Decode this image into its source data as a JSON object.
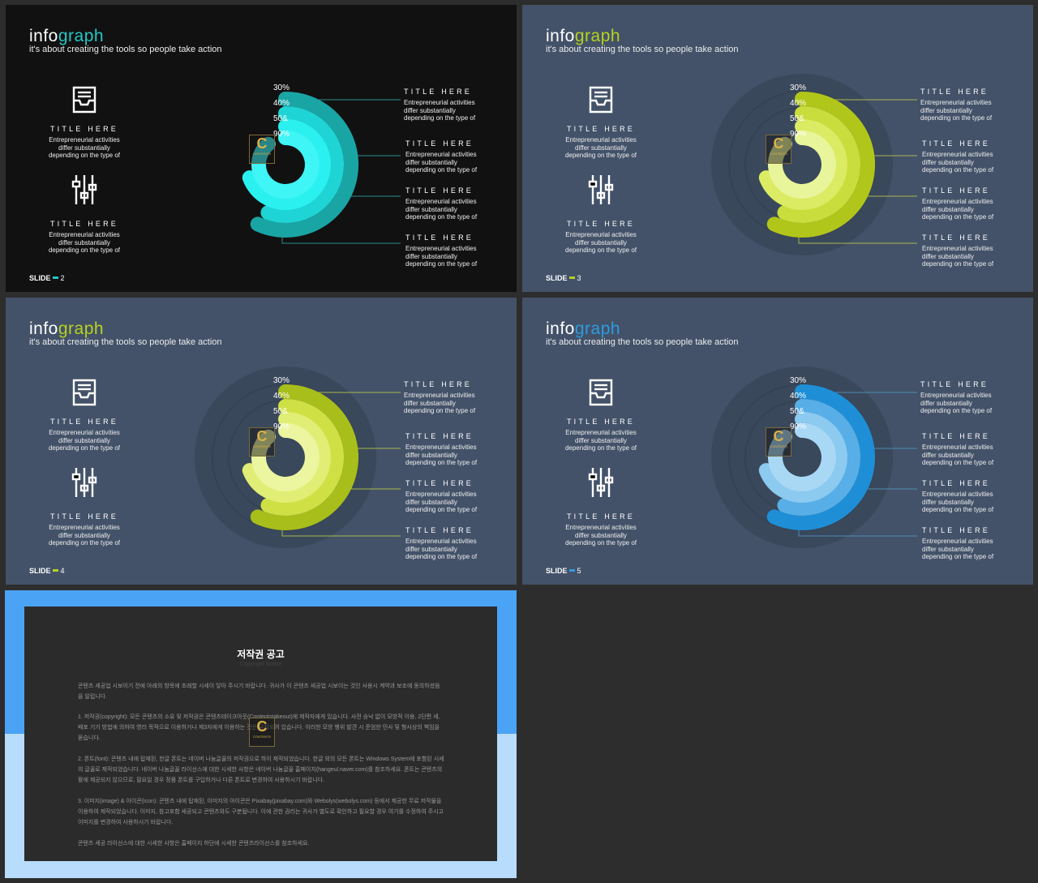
{
  "slides": [
    {
      "bg": "#111111",
      "title_a": "info",
      "title_b": "graph",
      "accent": "#26c6c6",
      "subtitle": "it's about creating the tools so people take action",
      "left": [
        {
          "icon": "inbox-tray-icon",
          "title": "TITLE HERE",
          "text": [
            "Entrepreneurial activities",
            "differ substantially",
            "depending on the type of"
          ]
        },
        {
          "icon": "sliders-icon",
          "title": "TITLE HERE",
          "text": [
            "Entrepreneurial activities",
            "differ substantially",
            "depending on the type of"
          ]
        }
      ],
      "right": [
        {
          "title": "TITLE HERE",
          "text": [
            "Entrepreneurial activities",
            "differ substantially",
            "depending on the type of"
          ]
        },
        {
          "title": "TITLE HERE",
          "text": [
            "Entrepreneurial activities",
            "differ substantially",
            "depending on the type of"
          ]
        },
        {
          "title": "TITLE HERE",
          "text": [
            "Entrepreneurial activities",
            "differ substantially",
            "depending on the type of"
          ]
        },
        {
          "title": "TITLE HERE",
          "text": [
            "Entrepreneurial activities",
            "differ substantially",
            "depending on the type of"
          ]
        }
      ],
      "ring_colors": [
        "#1aa5a5",
        "#1fd4d4",
        "#2bf0f0",
        "#3ff5f5"
      ],
      "line_color": "#2a8a8a",
      "halo": false,
      "slide_label": "SLIDE",
      "slide_num": "2"
    },
    {
      "bg": "#435269",
      "title_a": "info",
      "title_b": "graph",
      "accent": "#b6d21f",
      "subtitle": "it's about creating the tools so people take action",
      "left": [
        {
          "icon": "inbox-tray-icon",
          "title": "TITLE HERE",
          "text": [
            "Entrepreneurial activities",
            "differ substantially",
            "depending on the type of"
          ]
        },
        {
          "icon": "sliders-icon",
          "title": "TITLE HERE",
          "text": [
            "Entrepreneurial activities",
            "differ substantially",
            "depending on the type of"
          ]
        }
      ],
      "right": [
        {
          "title": "TITLE HERE",
          "text": [
            "Entrepreneurial activities",
            "differ substantially",
            "depending on the type of"
          ]
        },
        {
          "title": "TITLE HERE",
          "text": [
            "Entrepreneurial activities",
            "differ substantially",
            "depending on the type of"
          ]
        },
        {
          "title": "TITLE HERE",
          "text": [
            "Entrepreneurial activities",
            "differ substantially",
            "depending on the type of"
          ]
        },
        {
          "title": "TITLE HERE",
          "text": [
            "Entrepreneurial activities",
            "differ substantially",
            "depending on the type of"
          ]
        }
      ],
      "ring_colors": [
        "#b1c61a",
        "#c9dd3c",
        "#dbeb63",
        "#e9f59a"
      ],
      "line_color": "#a7b84a",
      "halo": true,
      "slide_label": "SLIDE",
      "slide_num": "3"
    },
    {
      "bg": "#435269",
      "title_a": "info",
      "title_b": "graph",
      "accent": "#b6d21f",
      "subtitle": "it's about creating the tools so people take action",
      "left": [
        {
          "icon": "inbox-tray-icon",
          "title": "TITLE HERE",
          "text": [
            "Entrepreneurial activities",
            "differ substantially",
            "depending on the type of"
          ]
        },
        {
          "icon": "sliders-icon",
          "title": "TITLE HERE",
          "text": [
            "Entrepreneurial activities",
            "differ substantially",
            "depending on the type of"
          ]
        }
      ],
      "right": [
        {
          "title": "TITLE HERE",
          "text": [
            "Entrepreneurial activities",
            "differ substantially",
            "depending on the type of"
          ]
        },
        {
          "title": "TITLE HERE",
          "text": [
            "Entrepreneurial activities",
            "differ substantially",
            "depending on the type of"
          ]
        },
        {
          "title": "TITLE HERE",
          "text": [
            "Entrepreneurial activities",
            "differ substantially",
            "depending on the type of"
          ]
        },
        {
          "title": "TITLE HERE",
          "text": [
            "Entrepreneurial activities",
            "differ substantially",
            "depending on the type of"
          ]
        }
      ],
      "ring_colors": [
        "#a8be1a",
        "#cfe045",
        "#e0ee75",
        "#ecf59f"
      ],
      "line_color": "#a7b84a",
      "halo": true,
      "slide_label": "SLIDE",
      "slide_num": "4"
    },
    {
      "bg": "#435269",
      "title_a": "info",
      "title_b": "graph",
      "accent": "#2e9be0",
      "subtitle": "it's about creating the tools so people take action",
      "left": [
        {
          "icon": "inbox-tray-icon",
          "title": "TITLE HERE",
          "text": [
            "Entrepreneurial activities",
            "differ substantially",
            "depending on the type of"
          ]
        },
        {
          "icon": "sliders-icon",
          "title": "TITLE HERE",
          "text": [
            "Entrepreneurial activities",
            "differ substantially",
            "depending on the type of"
          ]
        }
      ],
      "right": [
        {
          "title": "TITLE HERE",
          "text": [
            "Entrepreneurial activities",
            "differ substantially",
            "depending on the type of"
          ]
        },
        {
          "title": "TITLE HERE",
          "text": [
            "Entrepreneurial activities",
            "differ substantially",
            "depending on the type of"
          ]
        },
        {
          "title": "TITLE HERE",
          "text": [
            "Entrepreneurial activities",
            "differ substantially",
            "depending on the type of"
          ]
        },
        {
          "title": "TITLE HERE",
          "text": [
            "Entrepreneurial activities",
            "differ substantially",
            "depending on the type of"
          ]
        }
      ],
      "ring_colors": [
        "#1e8fd6",
        "#58aee6",
        "#8ccaf0",
        "#a9d8f5"
      ],
      "line_color": "#4f8ab3",
      "halo": true,
      "slide_label": "SLIDE",
      "slide_num": "5"
    }
  ],
  "chart_data": {
    "type": "radial-bar",
    "values": [
      "30%",
      "40%",
      "50&",
      "90%"
    ]
  },
  "logo": {
    "letter": "C",
    "sub": "CONTENTS"
  },
  "notice": {
    "top_color": "#4aa3f5",
    "bottom_color": "#b8dcfb",
    "title": "저작권 공고",
    "subtitle": "Copyright Notice",
    "paragraphs": [
      "콘텐츠 세공업 시보이기 전에 아래의 항목에 초래할 시세이 닿아 주시기 바랍니다. 귀사가 이 콘텐츠 세공업 시보이는 것인 사용시 계약과 보조에 동의하셨음을 알립니다.",
      "1. 저작권(copyright): 모든 콘텐츠의 소유 및 저작권은 콘텐츠테이크아웃(Contentstakeout)에 제작자에게 있습니다. 사전 승낙 없이 모방적 이용, 2단편 세, 배포 기기 방법에 의하여 영리 목적으로 이용하거나 제3자에게 이용하는 것은 금지되어 있습니다. 이러한 모방 행위 발견 시 준엄한 민사 및 형사상의 책임을 묻습니다.",
      "2. 폰트(font): 콘텐츠 내에 탑재된, 한글 폰트는 네이버 나눔글꼴의 저작권으로 하이 제작되었습니다. 한글 외의 모든 폰트는 Windows System에 포함된 시세의 글꼴로 제작되었습니다. 네이버 나눔글꼴 라이선스에 대한 시세한 사항은 네이버 나눔글꼴 홈페이지(hangeul.naver.com)를 참조하세요. 폰트는 콘텐츠의 활에 제공되지 않으므로, 필요일 경우 정품 폰트를 구입하거나 다른 폰트로 변경하여 사용하시기 바랍니다.",
      "3. 이미지(image) & 아이콘(icon): 콘텐츠 내에 탑재된, 이미지의 아이콘은 Pixabay(pixabay.com)와 Webolys(webolys.com) 등에서 제공한 무료 저작물을 이용하여 제작되었습니다. 이미지, 참고포함 세공되고 콘텐츠와도 구분됩니다. 이에 관한 권리는 귀사가 별도로 확인하고 필요할 경우 여기를 수정하여 주시고 이미지를 변경하여 사용하시기 바랍니다.",
      "콘텐츠 세공 라이선스에 대한 시세한 사항은 홈페이지 하단에 시세한 콘텐츠라이선스를 참조하세요."
    ]
  }
}
